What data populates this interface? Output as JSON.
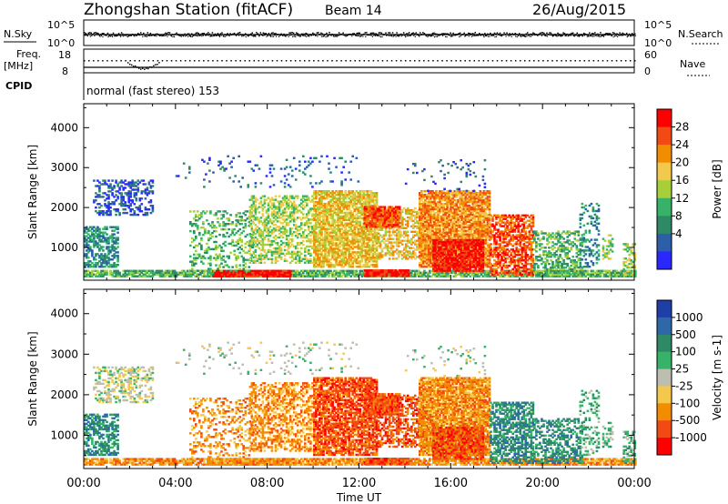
{
  "header": {
    "title": "Zhongshan Station (fitACF)",
    "beam": "Beam 14",
    "date": "26/Aug/2015"
  },
  "top_panels": {
    "nsky_label": "N.Sky",
    "nsky_ticks": [
      "10^5",
      "10^0"
    ],
    "nsearch_label": "N.Search",
    "nsearch_ticks": [
      "10^5",
      "10^0"
    ],
    "freq_label": "Freq.",
    "freq_unit": "[MHz]",
    "freq_ticks": [
      "18",
      "8"
    ],
    "nave_label": "Nave",
    "nave_ticks": [
      "60",
      "0"
    ],
    "cpid_label": "CPID",
    "cpid_text": "normal (fast stereo) 153"
  },
  "chart_data": [
    {
      "type": "heatmap",
      "name": "power",
      "xlabel": "",
      "ylabel": "Slant Range [km]",
      "xlim": [
        0,
        24
      ],
      "ylim": [
        180,
        4600
      ],
      "yticks": [
        1000,
        2000,
        3000,
        4000
      ],
      "colorbar": {
        "label": "Power [dB]",
        "ticks": [
          "28",
          "24",
          "20",
          "16",
          "12",
          "8",
          "4"
        ],
        "colors": [
          "#ff0000",
          "#f24a14",
          "#f28c00",
          "#f2c94d",
          "#a6cf3a",
          "#36b368",
          "#2e8a66",
          "#2e5ea8",
          "#2828ff"
        ]
      }
    },
    {
      "type": "heatmap",
      "name": "velocity",
      "xlabel": "Time UT",
      "ylabel": "Slant Range [km]",
      "xlim": [
        0,
        24
      ],
      "ylim": [
        180,
        4600
      ],
      "xticks": [
        "00:00",
        "04:00",
        "08:00",
        "12:00",
        "16:00",
        "20:00",
        "00:00"
      ],
      "yticks": [
        1000,
        2000,
        3000,
        4000
      ],
      "colorbar": {
        "label": "Velocity [m s-1]",
        "ticks": [
          "1000",
          "500",
          "100",
          "25",
          "-25",
          "-100",
          "-500",
          "-1000"
        ],
        "colors": [
          "#1e3ea8",
          "#2e68a8",
          "#2e8a66",
          "#36b368",
          "#bdbdb0",
          "#f2c94d",
          "#f28c00",
          "#f24a14",
          "#ff0000"
        ]
      }
    }
  ]
}
